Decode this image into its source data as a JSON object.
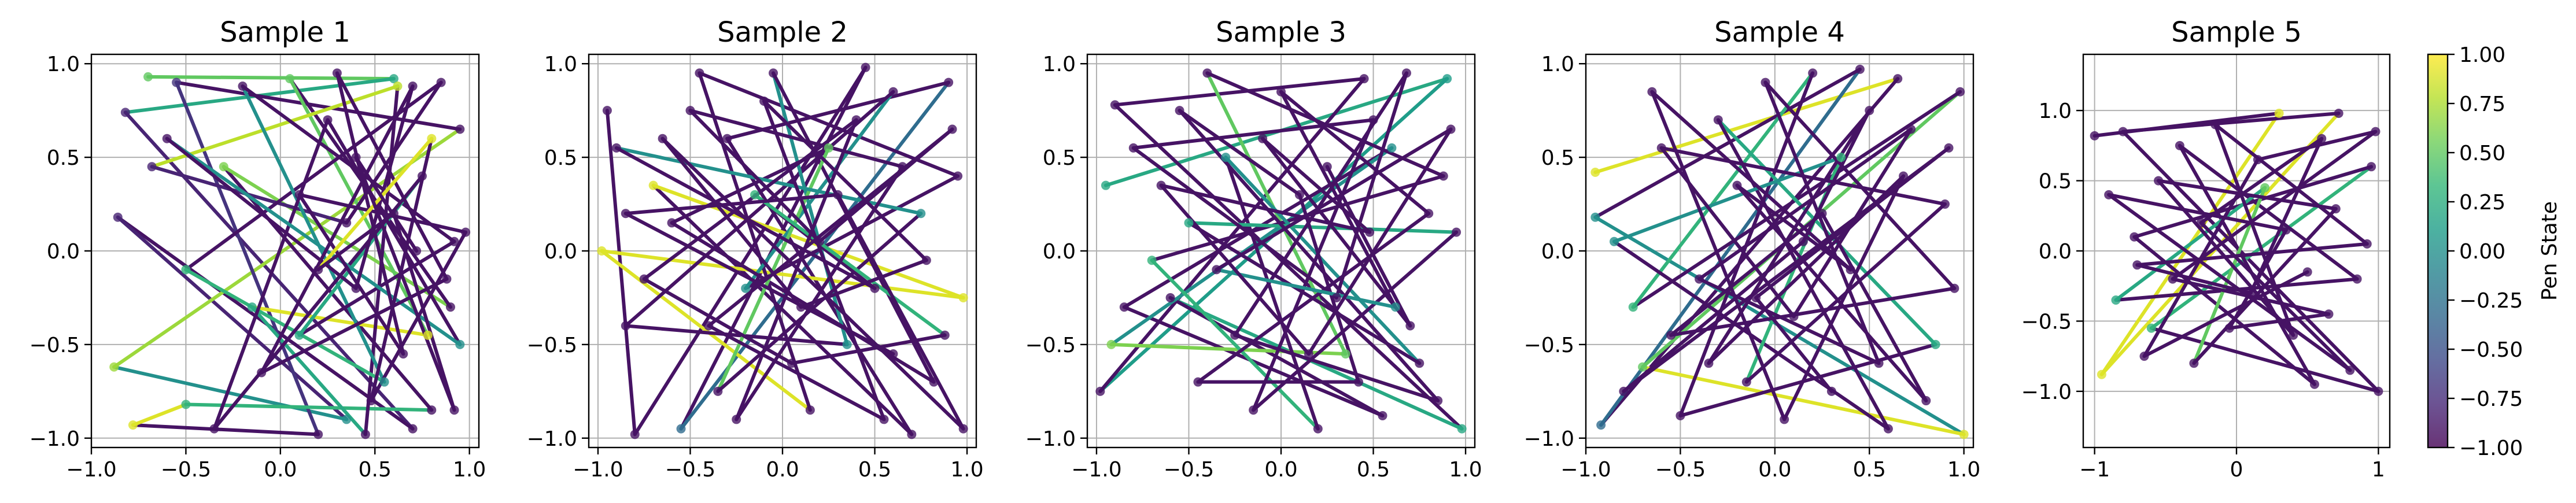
{
  "figure": {
    "colorbar": {
      "label": "Pen State",
      "range": [
        -1.0,
        1.0
      ],
      "ticks": [
        "1.00",
        "0.75",
        "0.50",
        "0.25",
        "0.00",
        "−0.25",
        "−0.50",
        "−0.75",
        "−1.00"
      ],
      "tick_values": [
        1.0,
        0.75,
        0.5,
        0.25,
        0.0,
        -0.25,
        -0.5,
        -0.75,
        -1.0
      ],
      "colormap": "viridis",
      "colormap_stops": [
        "#440154",
        "#482878",
        "#3e4a89",
        "#31688e",
        "#26828e",
        "#1f9e89",
        "#35b779",
        "#6ece58",
        "#b5de2b",
        "#fde725"
      ]
    }
  },
  "chart_data": [
    {
      "type": "line",
      "title": "Sample 1",
      "xlim": [
        -1.0,
        1.05
      ],
      "ylim": [
        -1.05,
        1.05
      ],
      "xticks": [
        -1.0,
        -0.5,
        0.0,
        0.5,
        1.0
      ],
      "xtick_labels": [
        "−1.0",
        "−0.5",
        "0.0",
        "0.5",
        "1.0"
      ],
      "yticks": [
        -1.0,
        -0.5,
        0.0,
        0.5,
        1.0
      ],
      "ytick_labels": [
        "−1.0",
        "−0.5",
        "0.0",
        "0.5",
        "1.0"
      ],
      "grid": true,
      "points": [
        [
          -0.7,
          0.93,
          0.5
        ],
        [
          0.6,
          0.92,
          0.2
        ],
        [
          -0.82,
          0.74,
          -0.8
        ],
        [
          0.7,
          -0.95,
          -0.9
        ],
        [
          -0.86,
          0.18,
          -0.8
        ],
        [
          0.35,
          -0.9,
          0.0
        ],
        [
          -0.88,
          -0.62,
          0.7
        ],
        [
          0.95,
          0.65,
          -0.9
        ],
        [
          -0.55,
          0.9,
          -0.7
        ],
        [
          0.2,
          -0.98,
          -0.9
        ],
        [
          -0.78,
          -0.93,
          0.9
        ],
        [
          -0.5,
          -0.82,
          0.3
        ],
        [
          0.8,
          -0.85,
          -0.9
        ],
        [
          -0.3,
          0.45,
          0.6
        ],
        [
          0.9,
          -0.3,
          -0.9
        ],
        [
          0.05,
          0.92,
          0.5
        ],
        [
          0.78,
          -0.45,
          0.9
        ],
        [
          -0.15,
          -0.3,
          0.2
        ],
        [
          0.45,
          -0.98,
          -0.9
        ],
        [
          0.62,
          0.88,
          0.8
        ],
        [
          -0.68,
          0.45,
          -0.8
        ],
        [
          0.35,
          0.15,
          -0.9
        ],
        [
          0.85,
          0.9,
          -0.9
        ],
        [
          -0.5,
          -0.1,
          0.3
        ],
        [
          0.55,
          -0.7,
          0.0
        ],
        [
          -0.2,
          0.88,
          -0.9
        ],
        [
          0.92,
          0.05,
          -0.9
        ],
        [
          0.1,
          -0.45,
          0.2
        ],
        [
          0.75,
          0.4,
          -0.9
        ],
        [
          -0.35,
          -0.95,
          -0.9
        ],
        [
          0.25,
          0.7,
          -0.9
        ],
        [
          0.95,
          -0.5,
          0.0
        ],
        [
          -0.6,
          0.6,
          -0.9
        ],
        [
          0.4,
          -0.2,
          -0.9
        ],
        [
          0.7,
          0.88,
          -0.9
        ],
        [
          -0.1,
          -0.65,
          -0.9
        ],
        [
          0.88,
          -0.15,
          -0.9
        ],
        [
          0.3,
          0.95,
          -0.9
        ],
        [
          0.65,
          -0.55,
          -0.9
        ],
        [
          0.1,
          0.3,
          -0.9
        ],
        [
          0.98,
          0.1,
          -0.9
        ],
        [
          0.48,
          -0.8,
          -0.9
        ],
        [
          0.8,
          0.6,
          0.9
        ],
        [
          0.2,
          -0.1,
          -0.9
        ],
        [
          0.6,
          0.2,
          -0.9
        ],
        [
          0.92,
          -0.85,
          -0.9
        ],
        [
          0.4,
          0.5,
          -0.9
        ],
        [
          0.72,
          0.0,
          -0.9
        ]
      ]
    },
    {
      "type": "line",
      "title": "Sample 2",
      "xlim": [
        -1.05,
        1.05
      ],
      "ylim": [
        -1.05,
        1.05
      ],
      "xticks": [
        -1.0,
        -0.5,
        0.0,
        0.5,
        1.0
      ],
      "xtick_labels": [
        "−1.0",
        "−0.5",
        "0.0",
        "0.5",
        "1.0"
      ],
      "yticks": [
        -1.0,
        -0.5,
        0.0,
        0.5,
        1.0
      ],
      "ytick_labels": [
        "−1.0",
        "−0.5",
        "0.0",
        "0.5",
        "1.0"
      ],
      "grid": true,
      "points": [
        [
          -0.95,
          0.75,
          -0.9
        ],
        [
          -0.8,
          -0.98,
          -0.9
        ],
        [
          0.45,
          0.98,
          -0.9
        ],
        [
          -0.55,
          -0.95,
          -0.3
        ],
        [
          0.9,
          0.9,
          -0.9
        ],
        [
          -0.3,
          0.6,
          -0.9
        ],
        [
          0.7,
          -0.98,
          -0.9
        ],
        [
          -0.7,
          0.35,
          0.9
        ],
        [
          0.98,
          -0.25,
          0.9
        ],
        [
          -0.98,
          0.0,
          0.9
        ],
        [
          0.15,
          -0.85,
          -0.9
        ],
        [
          -0.45,
          0.95,
          -0.9
        ],
        [
          0.95,
          0.4,
          -0.9
        ],
        [
          -0.2,
          -0.2,
          0.0
        ],
        [
          0.6,
          0.85,
          -0.9
        ],
        [
          -0.85,
          -0.4,
          -0.9
        ],
        [
          0.35,
          -0.5,
          0.0
        ],
        [
          -0.05,
          0.95,
          -0.9
        ],
        [
          0.82,
          -0.7,
          -0.9
        ],
        [
          -0.6,
          0.15,
          -0.9
        ],
        [
          0.25,
          0.55,
          0.5
        ],
        [
          -0.35,
          -0.75,
          -0.9
        ],
        [
          0.75,
          0.2,
          0.0
        ],
        [
          -0.9,
          0.55,
          -0.9
        ],
        [
          0.5,
          -0.2,
          -0.9
        ],
        [
          -0.15,
          0.3,
          0.3
        ],
        [
          0.88,
          -0.45,
          -0.9
        ],
        [
          0.05,
          -0.6,
          -0.9
        ],
        [
          -0.75,
          -0.15,
          -0.9
        ],
        [
          0.4,
          0.7,
          -0.9
        ],
        [
          -0.25,
          -0.9,
          -0.9
        ],
        [
          0.65,
          0.45,
          -0.9
        ],
        [
          -0.5,
          0.75,
          -0.9
        ],
        [
          0.2,
          0.05,
          -0.9
        ],
        [
          0.92,
          0.65,
          -0.9
        ],
        [
          -0.4,
          -0.4,
          -0.9
        ],
        [
          0.55,
          -0.9,
          -0.9
        ],
        [
          -0.1,
          0.8,
          -0.9
        ],
        [
          0.78,
          -0.05,
          -0.9
        ],
        [
          0.1,
          -0.3,
          -0.9
        ],
        [
          -0.65,
          0.6,
          -0.9
        ],
        [
          0.98,
          -0.95,
          -0.9
        ],
        [
          0.3,
          0.3,
          -0.9
        ],
        [
          -0.85,
          0.2,
          -0.9
        ],
        [
          0.6,
          -0.55,
          -0.9
        ]
      ]
    },
    {
      "type": "line",
      "title": "Sample 3",
      "xlim": [
        -1.05,
        1.05
      ],
      "ylim": [
        -1.05,
        1.05
      ],
      "xticks": [
        -1.0,
        -0.5,
        0.0,
        0.5,
        1.0
      ],
      "xtick_labels": [
        "−1.0",
        "−0.5",
        "0.0",
        "0.5",
        "1.0"
      ],
      "yticks": [
        -1.0,
        -0.5,
        0.0,
        0.5,
        1.0
      ],
      "ytick_labels": [
        "−1.0",
        "−0.5",
        "0.0",
        "0.5",
        "1.0"
      ],
      "grid": true,
      "points": [
        [
          -0.95,
          0.35,
          0.2
        ],
        [
          0.9,
          0.92,
          0.1
        ],
        [
          -0.98,
          -0.75,
          -0.9
        ],
        [
          0.45,
          0.92,
          -0.9
        ],
        [
          -0.9,
          0.78,
          -0.9
        ],
        [
          0.98,
          -0.95,
          0.2
        ],
        [
          -0.6,
          -0.25,
          -0.9
        ],
        [
          0.55,
          -0.88,
          -0.9
        ],
        [
          -0.85,
          -0.3,
          -0.9
        ],
        [
          0.6,
          0.55,
          0.0
        ],
        [
          -0.92,
          -0.5,
          0.6
        ],
        [
          0.35,
          -0.55,
          0.5
        ],
        [
          -0.4,
          0.95,
          -0.9
        ],
        [
          0.88,
          0.4,
          -0.9
        ],
        [
          -0.7,
          -0.05,
          0.3
        ],
        [
          0.2,
          -0.95,
          -0.9
        ],
        [
          -0.3,
          0.5,
          0.0
        ],
        [
          0.75,
          -0.6,
          -0.9
        ],
        [
          -0.5,
          0.15,
          0.2
        ],
        [
          0.95,
          0.1,
          -0.9
        ],
        [
          -0.15,
          -0.85,
          -0.9
        ],
        [
          0.5,
          0.7,
          -0.9
        ],
        [
          -0.8,
          0.55,
          -0.9
        ],
        [
          0.3,
          -0.25,
          -0.9
        ],
        [
          0.68,
          0.95,
          -0.9
        ],
        [
          -0.25,
          -0.45,
          -0.9
        ],
        [
          0.85,
          -0.8,
          -0.9
        ],
        [
          -0.55,
          0.75,
          -0.9
        ],
        [
          0.1,
          0.3,
          -0.9
        ],
        [
          0.42,
          -0.7,
          -0.9
        ],
        [
          -0.45,
          -0.7,
          -0.9
        ],
        [
          0.8,
          0.2,
          -0.9
        ],
        [
          0.0,
          0.85,
          -0.9
        ],
        [
          0.62,
          -0.3,
          0.0
        ],
        [
          -0.35,
          -0.1,
          -0.9
        ],
        [
          0.92,
          0.65,
          -0.9
        ],
        [
          0.15,
          -0.55,
          -0.9
        ],
        [
          -0.65,
          0.35,
          -0.9
        ],
        [
          0.48,
          0.1,
          -0.9
        ],
        [
          -0.1,
          0.6,
          -0.9
        ],
        [
          0.7,
          -0.4,
          -0.9
        ],
        [
          0.25,
          0.45,
          -0.9
        ]
      ]
    },
    {
      "type": "line",
      "title": "Sample 4",
      "xlim": [
        -1.0,
        1.05
      ],
      "ylim": [
        -1.05,
        1.05
      ],
      "xticks": [
        -1.0,
        -0.5,
        0.0,
        0.5,
        1.0
      ],
      "xtick_labels": [
        "−1.0",
        "−0.5",
        "0.0",
        "0.5",
        "1.0"
      ],
      "yticks": [
        -1.0,
        -0.5,
        0.0,
        0.5,
        1.0
      ],
      "ytick_labels": [
        "−1.0",
        "−0.5",
        "0.0",
        "0.5",
        "1.0"
      ],
      "grid": true,
      "points": [
        [
          -0.95,
          0.42,
          0.9
        ],
        [
          0.65,
          0.92,
          -0.9
        ],
        [
          -0.92,
          -0.93,
          -0.3
        ],
        [
          0.45,
          0.97,
          -0.9
        ],
        [
          -0.95,
          0.18,
          0.0
        ],
        [
          1.0,
          -0.98,
          0.9
        ],
        [
          -0.7,
          -0.62,
          0.5
        ],
        [
          0.98,
          0.85,
          -0.9
        ],
        [
          -0.75,
          -0.3,
          0.3
        ],
        [
          0.2,
          0.95,
          -0.9
        ],
        [
          -0.5,
          -0.88,
          -0.9
        ],
        [
          0.85,
          -0.5,
          0.2
        ],
        [
          -0.3,
          0.7,
          -0.9
        ],
        [
          0.6,
          -0.95,
          -0.9
        ],
        [
          -0.85,
          0.05,
          0.0
        ],
        [
          0.35,
          0.5,
          0.3
        ],
        [
          -0.15,
          -0.7,
          -0.9
        ],
        [
          0.9,
          0.25,
          -0.9
        ],
        [
          -0.6,
          0.55,
          -0.9
        ],
        [
          0.1,
          -0.35,
          -0.9
        ],
        [
          0.72,
          0.65,
          -0.9
        ],
        [
          -0.4,
          -0.15,
          -0.9
        ],
        [
          0.55,
          -0.6,
          -0.9
        ],
        [
          -0.05,
          0.9,
          -0.9
        ],
        [
          0.95,
          -0.2,
          -0.9
        ],
        [
          -0.55,
          -0.45,
          -0.9
        ],
        [
          0.25,
          0.2,
          -0.9
        ],
        [
          0.8,
          -0.8,
          -0.9
        ],
        [
          -0.2,
          0.35,
          -0.9
        ],
        [
          0.4,
          -0.1,
          -0.9
        ],
        [
          -0.65,
          0.85,
          -0.9
        ],
        [
          0.05,
          -0.9,
          -0.9
        ],
        [
          0.68,
          0.4,
          -0.9
        ],
        [
          -0.35,
          -0.6,
          -0.9
        ],
        [
          0.5,
          0.75,
          -0.9
        ],
        [
          0.15,
          0.05,
          -0.9
        ],
        [
          -0.8,
          -0.75,
          -0.9
        ],
        [
          0.92,
          0.55,
          -0.9
        ],
        [
          -0.1,
          -0.25,
          -0.9
        ],
        [
          0.3,
          -0.75,
          -0.9
        ]
      ]
    },
    {
      "type": "line",
      "title": "Sample 5",
      "xlim": [
        -1.08,
        1.08
      ],
      "ylim": [
        -1.4,
        1.4
      ],
      "xticks": [
        -1,
        0,
        1
      ],
      "xtick_labels": [
        "−1",
        "0",
        "1"
      ],
      "yticks": [
        -1.0,
        -0.5,
        0.0,
        0.5,
        1.0
      ],
      "ytick_labels": [
        "−1.0",
        "−0.5",
        "0.0",
        "0.5",
        "1.0"
      ],
      "grid": true,
      "points": [
        [
          -1.0,
          0.82,
          -0.9
        ],
        [
          0.3,
          0.98,
          0.9
        ],
        [
          -0.95,
          -0.88,
          0.9
        ],
        [
          0.72,
          0.98,
          -0.9
        ],
        [
          -0.8,
          0.85,
          -0.9
        ],
        [
          1.0,
          -1.0,
          -0.9
        ],
        [
          -0.6,
          -0.55,
          0.3
        ],
        [
          0.95,
          0.6,
          -0.9
        ],
        [
          -0.72,
          0.1,
          -0.9
        ],
        [
          0.55,
          -0.95,
          -0.9
        ],
        [
          -0.4,
          0.75,
          -0.9
        ],
        [
          0.85,
          -0.2,
          -0.9
        ],
        [
          -0.85,
          -0.35,
          0.2
        ],
        [
          0.2,
          0.45,
          0.5
        ],
        [
          -0.3,
          -0.8,
          -0.9
        ],
        [
          0.7,
          0.3,
          -0.9
        ],
        [
          -0.55,
          0.5,
          -0.9
        ],
        [
          0.4,
          -0.6,
          -0.9
        ],
        [
          -0.15,
          0.9,
          -0.9
        ],
        [
          0.92,
          0.05,
          -0.9
        ],
        [
          -0.7,
          -0.1,
          -0.9
        ],
        [
          0.1,
          -0.3,
          -0.9
        ],
        [
          0.6,
          0.8,
          -0.9
        ],
        [
          -0.25,
          0.2,
          -0.9
        ],
        [
          0.8,
          -0.85,
          -0.9
        ],
        [
          -0.9,
          0.4,
          -0.9
        ],
        [
          0.35,
          0.15,
          -0.9
        ],
        [
          -0.05,
          -0.55,
          -0.9
        ],
        [
          0.65,
          -0.45,
          -0.9
        ],
        [
          -0.45,
          -0.2,
          -0.9
        ],
        [
          0.98,
          0.85,
          -0.9
        ],
        [
          0.15,
          0.65,
          -0.9
        ],
        [
          -0.65,
          -0.75,
          -0.9
        ],
        [
          0.5,
          -0.15,
          -0.9
        ]
      ]
    }
  ]
}
